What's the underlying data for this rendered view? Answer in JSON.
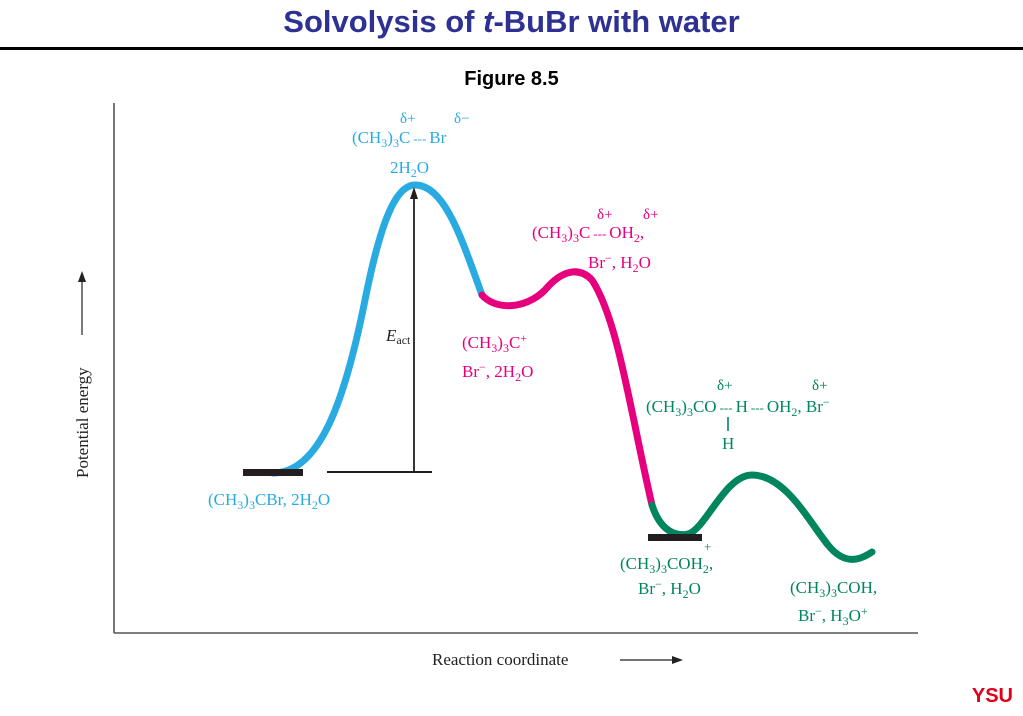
{
  "title": {
    "prefix": "Solvolysis of ",
    "italic": "t",
    "suffix": "-BuBr with water"
  },
  "figure_caption": "Figure 8.5",
  "logo": "YSU",
  "axes": {
    "y_label": "Potential energy",
    "x_label": "Reaction coordinate"
  },
  "colors": {
    "step1": "#29abe2",
    "step2": "#e6007e",
    "step3": "#00855f",
    "title": "#2e3192",
    "logo": "#e0001b"
  },
  "labels": {
    "reactants": {
      "main": "(CH",
      "sub1": "3",
      "mid": ")",
      "sub2": "3",
      "tail": "CBr, 2H",
      "sub3": "2",
      "end": "O"
    },
    "ts1": {
      "delta_plus": "δ+",
      "delta_minus": "δ−",
      "line1_a": "(CH",
      "line1_b": "3",
      "line1_c": ")",
      "line1_d": "3",
      "line1_e": "C",
      "line1_f": "---",
      "line1_g": "Br",
      "line2_a": "2H",
      "line2_b": "2",
      "line2_c": "O"
    },
    "activation_energy": {
      "symbol": "E",
      "subscript": "act"
    },
    "carbocation": {
      "line1_a": "(CH",
      "line1_b": "3",
      "line1_c": ")",
      "line1_d": "3",
      "line1_e": "C",
      "line1_charge": "+",
      "line2_a": "Br",
      "line2_charge": "−",
      "line2_b": ", 2H",
      "line2_c": "2",
      "line2_d": "O"
    },
    "ts2": {
      "delta_plus_1": "δ+",
      "delta_plus_2": "δ+",
      "line1_a": "(CH",
      "line1_b": "3",
      "line1_c": ")",
      "line1_d": "3",
      "line1_e": "C",
      "line1_f": "---",
      "line1_g": "OH",
      "line1_h": "2",
      "line1_i": ",",
      "line2_a": "Br",
      "line2_charge": "−",
      "line2_b": ", H",
      "line2_c": "2",
      "line2_d": "O"
    },
    "ts3": {
      "delta_plus_1": "δ+",
      "delta_plus_2": "δ+",
      "line1_a": "(CH",
      "line1_b": "3",
      "line1_c": ")",
      "line1_d": "3",
      "line1_e": "CO",
      "line1_f": "---",
      "line1_g": "H",
      "line1_h": "---",
      "line1_i": "OH",
      "line1_j": "2",
      "line1_k": ", Br",
      "line1_charge": "−",
      "h_below": "H"
    },
    "oxonium": {
      "charge": "+",
      "line1_a": "(CH",
      "line1_b": "3",
      "line1_c": ")",
      "line1_d": "3",
      "line1_e": "COH",
      "line1_f": "2",
      "line1_g": ",",
      "line2_a": "Br",
      "line2_charge": "−",
      "line2_b": ", H",
      "line2_c": "2",
      "line2_d": "O"
    },
    "products": {
      "line1_a": "(CH",
      "line1_b": "3",
      "line1_c": ")",
      "line1_d": "3",
      "line1_e": "COH,",
      "line2_a": "Br",
      "line2_charge": "−",
      "line2_b": ", H",
      "line2_c": "3",
      "line2_d": "O",
      "line2_charge2": "+"
    }
  }
}
